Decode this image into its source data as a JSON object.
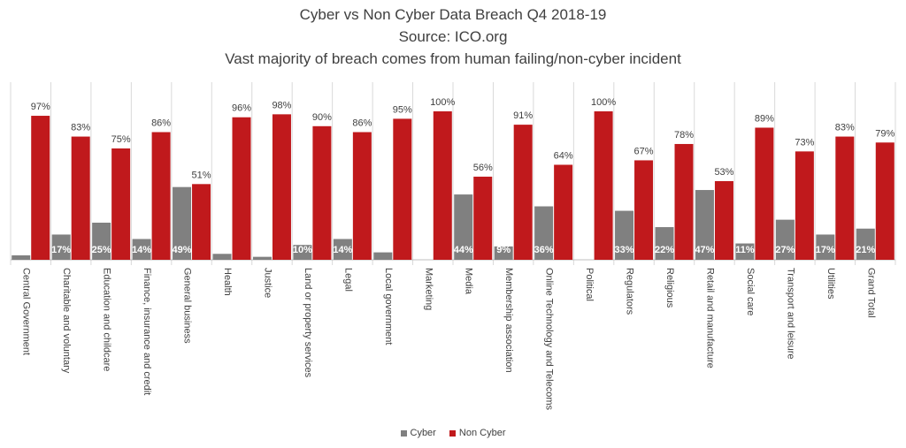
{
  "chart_data": {
    "type": "bar",
    "title": "Cyber vs Non Cyber Data Breach Q4 2018-19",
    "subtitle": "Source: ICO.org",
    "subtitle2": "Vast majority of breach comes from human failing/non-cyber incident",
    "categories": [
      "Central Government",
      "Charitable and voluntary",
      "Education and childcare",
      "Finance, insurance and credit",
      "General business",
      "Health",
      "Justice",
      "Land or property services",
      "Legal",
      "Local government",
      "Marketing",
      "Media",
      "Membership association",
      "Online Technology and Telecoms",
      "Political",
      "Regulators",
      "Religious",
      "Retail and manufacture",
      "Social care",
      "Transport and leisure",
      "Utilities",
      "Grand Total"
    ],
    "series": [
      {
        "name": "Cyber",
        "color": "#808080",
        "values": [
          3,
          17,
          25,
          14,
          49,
          4,
          2,
          10,
          14,
          5,
          0,
          44,
          9,
          36,
          0,
          33,
          22,
          47,
          11,
          27,
          17,
          21
        ],
        "labels": [
          "",
          "17%",
          "25%",
          "14%",
          "49%",
          "",
          "",
          "10%",
          "14%",
          "",
          "",
          "44%",
          "9%",
          "36%",
          "",
          "33%",
          "22%",
          "47%",
          "11%",
          "27%",
          "17%",
          "21%"
        ]
      },
      {
        "name": "Non Cyber",
        "color": "#c0191c",
        "values": [
          97,
          83,
          75,
          86,
          51,
          96,
          98,
          90,
          86,
          95,
          100,
          56,
          91,
          64,
          100,
          67,
          78,
          53,
          89,
          73,
          83,
          79
        ],
        "labels": [
          "97%",
          "83%",
          "75%",
          "86%",
          "51%",
          "96%",
          "98%",
          "90%",
          "86%",
          "95%",
          "100%",
          "56%",
          "91%",
          "64%",
          "100%",
          "67%",
          "78%",
          "53%",
          "89%",
          "73%",
          "83%",
          "79%"
        ]
      }
    ],
    "ylim": [
      0,
      100
    ],
    "xlabel": "",
    "ylabel": "",
    "legend_position": "bottom"
  }
}
